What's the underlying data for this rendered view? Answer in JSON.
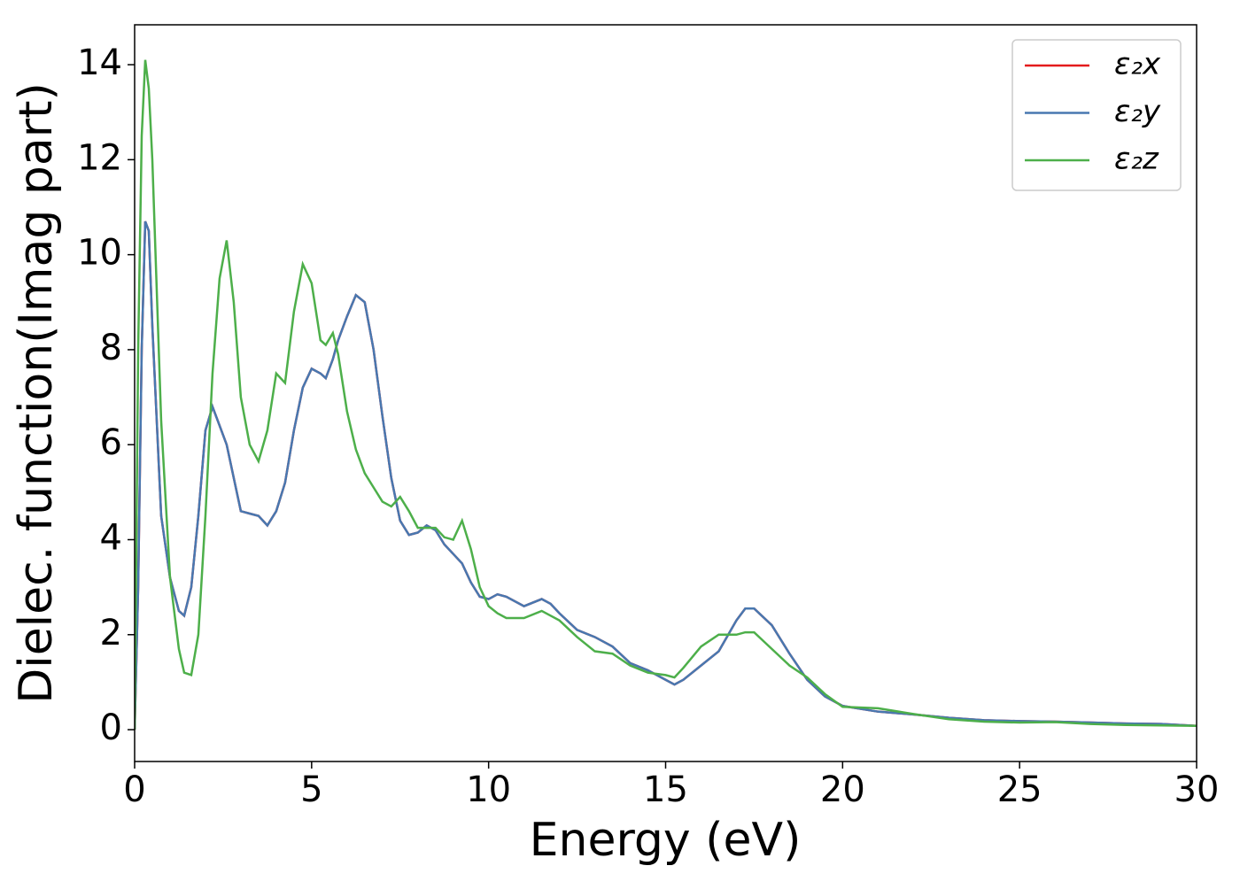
{
  "chart_data": {
    "type": "line",
    "xlabel": "Energy (eV)",
    "ylabel": "Dielec. function(Imag part)",
    "x": [
      0,
      0.1,
      0.2,
      0.3,
      0.4,
      0.5,
      0.75,
      1.0,
      1.25,
      1.4,
      1.6,
      1.8,
      2.0,
      2.2,
      2.4,
      2.6,
      2.8,
      3.0,
      3.25,
      3.5,
      3.75,
      4.0,
      4.25,
      4.5,
      4.75,
      5.0,
      5.25,
      5.4,
      5.6,
      5.75,
      6.0,
      6.25,
      6.5,
      6.75,
      7.0,
      7.25,
      7.5,
      7.75,
      8.0,
      8.25,
      8.5,
      8.75,
      9.0,
      9.25,
      9.5,
      9.75,
      10,
      10.25,
      10.5,
      11,
      11.5,
      11.75,
      12,
      12.5,
      13,
      13.5,
      14,
      14.5,
      15,
      15.25,
      15.5,
      16,
      16.5,
      17,
      17.25,
      17.5,
      18,
      18.5,
      19,
      19.5,
      20,
      21,
      22,
      23,
      24,
      25,
      26,
      27,
      28,
      29,
      30
    ],
    "series": [
      {
        "name": "ε₂x",
        "color": "#e41a1c",
        "values": [
          0,
          3,
          8,
          10.7,
          10.5,
          8.5,
          4.5,
          3.2,
          2.5,
          2.4,
          3,
          4.5,
          6.3,
          6.8,
          6.4,
          6.0,
          5.3,
          4.6,
          4.55,
          4.5,
          4.3,
          4.6,
          5.2,
          6.3,
          7.2,
          7.6,
          7.5,
          7.4,
          7.8,
          8.2,
          8.7,
          9.15,
          9.0,
          8.0,
          6.6,
          5.3,
          4.4,
          4.1,
          4.15,
          4.3,
          4.2,
          3.9,
          3.7,
          3.5,
          3.1,
          2.8,
          2.75,
          2.85,
          2.8,
          2.6,
          2.75,
          2.65,
          2.45,
          2.1,
          1.95,
          1.75,
          1.4,
          1.25,
          1.05,
          0.95,
          1.05,
          1.35,
          1.65,
          2.3,
          2.55,
          2.55,
          2.2,
          1.6,
          1.05,
          0.7,
          0.5,
          0.38,
          0.32,
          0.25,
          0.2,
          0.18,
          0.17,
          0.15,
          0.13,
          0.12,
          0.08
        ]
      },
      {
        "name": "ε₂y",
        "color": "#4878b0",
        "values": [
          0,
          3,
          8,
          10.7,
          10.5,
          8.5,
          4.5,
          3.2,
          2.5,
          2.4,
          3,
          4.5,
          6.3,
          6.8,
          6.4,
          6.0,
          5.3,
          4.6,
          4.55,
          4.5,
          4.3,
          4.6,
          5.2,
          6.3,
          7.2,
          7.6,
          7.5,
          7.4,
          7.8,
          8.2,
          8.7,
          9.15,
          9.0,
          8.0,
          6.6,
          5.3,
          4.4,
          4.1,
          4.15,
          4.3,
          4.2,
          3.9,
          3.7,
          3.5,
          3.1,
          2.8,
          2.75,
          2.85,
          2.8,
          2.6,
          2.75,
          2.65,
          2.45,
          2.1,
          1.95,
          1.75,
          1.4,
          1.25,
          1.05,
          0.95,
          1.05,
          1.35,
          1.65,
          2.3,
          2.55,
          2.55,
          2.2,
          1.6,
          1.05,
          0.7,
          0.5,
          0.38,
          0.32,
          0.25,
          0.2,
          0.18,
          0.17,
          0.15,
          0.13,
          0.12,
          0.08
        ]
      },
      {
        "name": "ε₂z",
        "color": "#4daf4a",
        "values": [
          0,
          8,
          12.5,
          14.1,
          13.5,
          12,
          6.5,
          3.2,
          1.7,
          1.2,
          1.15,
          2,
          4.5,
          7.5,
          9.5,
          10.3,
          9,
          7,
          6.0,
          5.65,
          6.3,
          7.5,
          7.3,
          8.8,
          9.8,
          9.4,
          8.2,
          8.1,
          8.35,
          7.9,
          6.7,
          5.9,
          5.4,
          5.1,
          4.8,
          4.7,
          4.9,
          4.6,
          4.25,
          4.25,
          4.25,
          4.05,
          4.0,
          4.4,
          3.8,
          3.0,
          2.6,
          2.45,
          2.35,
          2.35,
          2.5,
          2.4,
          2.3,
          1.95,
          1.65,
          1.6,
          1.35,
          1.2,
          1.15,
          1.1,
          1.3,
          1.75,
          2.0,
          2.0,
          2.05,
          2.05,
          1.7,
          1.35,
          1.1,
          0.75,
          0.48,
          0.45,
          0.33,
          0.22,
          0.17,
          0.15,
          0.16,
          0.12,
          0.1,
          0.09,
          0.08
        ]
      }
    ],
    "xlim": [
      0,
      30
    ],
    "xticks": [
      0,
      5,
      10,
      15,
      20,
      25,
      30
    ],
    "ylim": [
      -0.67,
      14.84
    ],
    "yticks": [
      0,
      2,
      4,
      6,
      8,
      10,
      12,
      14
    ],
    "grid": false,
    "legend": "upper right"
  }
}
